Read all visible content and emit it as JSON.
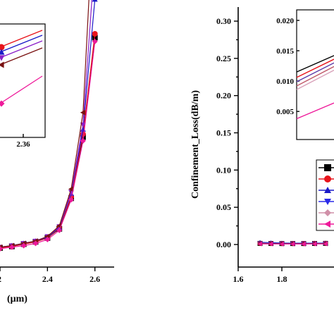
{
  "chart_data": [
    {
      "panel": "left",
      "type": "line",
      "xlabel": "(μm)",
      "ylabel": "",
      "xlim": [
        2.16,
        2.66
      ],
      "ylim": [
        -0.02,
        0.32
      ],
      "x_ticks": [
        "2",
        "2.4",
        "2.6"
      ],
      "y_ticks": [],
      "x": [
        2.2,
        2.25,
        2.3,
        2.35,
        2.4,
        2.45,
        2.5,
        2.55,
        2.6
      ],
      "series": [
        {
          "color": "#000000",
          "marker": "square",
          "values": [
            0.005,
            0.007,
            0.01,
            0.013,
            0.018,
            0.03,
            0.07,
            0.15,
            0.28
          ]
        },
        {
          "color": "#e8141b",
          "marker": "circle",
          "values": [
            0.005,
            0.007,
            0.01,
            0.013,
            0.018,
            0.031,
            0.072,
            0.154,
            0.285
          ]
        },
        {
          "color": "#1a1ac8",
          "marker": "triangle-up",
          "values": [
            0.006,
            0.008,
            0.011,
            0.014,
            0.019,
            0.032,
            0.076,
            0.16,
            0.33
          ]
        },
        {
          "color": "#8a1fc8",
          "marker": "triangle-down",
          "values": [
            0.006,
            0.008,
            0.011,
            0.014,
            0.02,
            0.033,
            0.078,
            0.166,
            0.385
          ]
        },
        {
          "color": "#7a1212",
          "marker": "triangle-left",
          "values": [
            0.006,
            0.008,
            0.011,
            0.014,
            0.02,
            0.034,
            0.082,
            0.182,
            0.48
          ]
        },
        {
          "color": "#ee1a9a",
          "marker": "diamond",
          "values": [
            0.004,
            0.006,
            0.008,
            0.011,
            0.016,
            0.028,
            0.068,
            0.145,
            0.275
          ]
        }
      ],
      "inset": {
        "x_ticks": [
          "2.36"
        ],
        "lines": [
          {
            "color": "#e8141b",
            "marker": "circle"
          },
          {
            "color": "#1a1ac8",
            "marker": "triangle-up"
          },
          {
            "color": "#8a1fc8",
            "marker": "triangle-down"
          },
          {
            "color": "#7a1212",
            "marker": "triangle-left"
          },
          {
            "color": "#ee1a9a",
            "marker": "diamond"
          }
        ]
      }
    },
    {
      "panel": "right",
      "type": "line",
      "xlabel": "",
      "ylabel": "Confinement_Loss(dB/m)",
      "xlim": [
        1.6,
        2.07
      ],
      "ylim": [
        -0.015,
        0.315
      ],
      "x_ticks": [
        "1.6",
        "1.8"
      ],
      "y_ticks": [
        "0.00",
        "0.05",
        "0.10",
        "0.15",
        "0.20",
        "0.25",
        "0.30"
      ],
      "x": [
        1.7,
        1.75,
        1.8,
        1.85,
        1.9,
        1.95,
        2.0
      ],
      "series": [
        {
          "color": "#000000",
          "marker": "square",
          "values": [
            0.0015,
            0.0014,
            0.0013,
            0.0013,
            0.0013,
            0.0014,
            0.0015
          ]
        },
        {
          "color": "#e8141b",
          "marker": "circle",
          "values": [
            0.0016,
            0.0015,
            0.0014,
            0.0014,
            0.0014,
            0.0015,
            0.0016
          ]
        },
        {
          "color": "#1a1ac8",
          "marker": "triangle-up",
          "values": [
            0.003,
            0.0025,
            0.002,
            0.0018,
            0.0018,
            0.0019,
            0.002
          ]
        },
        {
          "color": "#8a1fc8",
          "marker": "triangle-down",
          "values": [
            0.0014,
            0.0013,
            0.0012,
            0.0012,
            0.0012,
            0.0013,
            0.0014
          ]
        },
        {
          "color": "#7a1212",
          "marker": "diamond",
          "values": [
            0.0012,
            0.0011,
            0.001,
            0.001,
            0.001,
            0.0011,
            0.0012
          ]
        },
        {
          "color": "#ee1a9a",
          "marker": "triangle-left",
          "values": [
            0.0008,
            0.0007,
            0.0006,
            0.0006,
            0.0006,
            0.0007,
            0.0008
          ]
        }
      ],
      "inset": {
        "y_ticks": [
          "0.020",
          "0.015",
          "0.010",
          "0.005"
        ],
        "ylim": [
          0.002,
          0.0215
        ],
        "lines": [
          {
            "color": "#000000",
            "y0": 0.0115,
            "y1": 0.0142
          },
          {
            "color": "#e8141b",
            "y0": 0.0106,
            "y1": 0.0136
          },
          {
            "color": "#5a3aa8",
            "y0": 0.0099,
            "y1": 0.013
          },
          {
            "color": "#c05a6a",
            "y0": 0.0092,
            "y1": 0.0124
          },
          {
            "color": "#d8a0b8",
            "y0": 0.0086,
            "y1": 0.0118
          },
          {
            "color": "#ee1a9a",
            "y0": 0.0038,
            "y1": 0.0064
          }
        ]
      },
      "legend": {
        "position": "right",
        "entries": [
          {
            "color": "#000000",
            "marker": "square"
          },
          {
            "color": "#e8141b",
            "marker": "circle"
          },
          {
            "color": "#1a1ac8",
            "marker": "triangle-up"
          },
          {
            "color": "#2a2ae8",
            "marker": "triangle-down"
          },
          {
            "color": "#d090a8",
            "marker": "diamond"
          },
          {
            "color": "#ee1a9a",
            "marker": "triangle-left"
          }
        ]
      }
    }
  ]
}
